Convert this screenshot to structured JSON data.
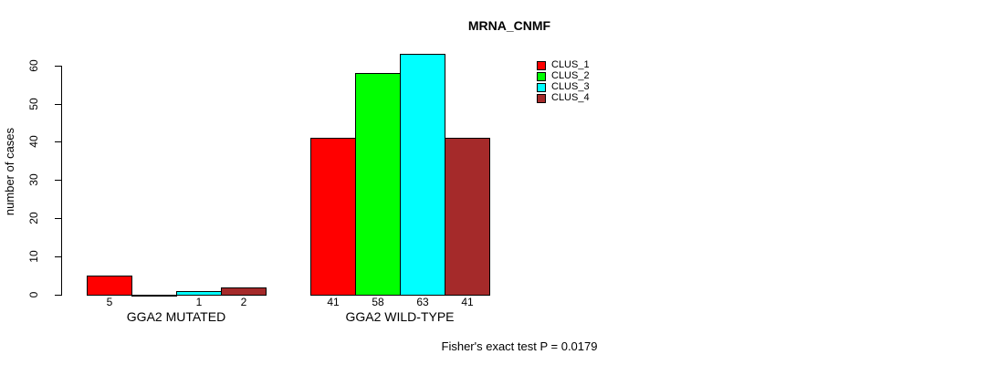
{
  "chart_data": {
    "type": "bar",
    "title": "MRNA_CNMF",
    "ylabel": "number of cases",
    "xlabel": "",
    "annotation": "Fisher's exact test P = 0.0179",
    "ylim": [
      0,
      60
    ],
    "yticks": [
      0,
      10,
      20,
      30,
      40,
      50,
      60
    ],
    "categories": [
      "GGA2 MUTATED",
      "GGA2 WILD-TYPE"
    ],
    "series": [
      {
        "name": "CLUS_1",
        "color": "#FF0000",
        "values": [
          5,
          41
        ]
      },
      {
        "name": "CLUS_2",
        "color": "#00FF00",
        "values": [
          0,
          58
        ]
      },
      {
        "name": "CLUS_3",
        "color": "#00FFFF",
        "values": [
          1,
          63
        ]
      },
      {
        "name": "CLUS_4",
        "color": "#A52A2A",
        "values": [
          2,
          41
        ]
      }
    ],
    "bar_value_labels": [
      "5",
      "",
      "1",
      "2",
      "41",
      "58",
      "63",
      "41"
    ],
    "legend": [
      "CLUS_1",
      "CLUS_2",
      "CLUS_3",
      "CLUS_4"
    ],
    "legend_position": "top-right",
    "grid": false,
    "background": "#ffffff",
    "text_color": "#000000",
    "axis_color": "#000000"
  }
}
